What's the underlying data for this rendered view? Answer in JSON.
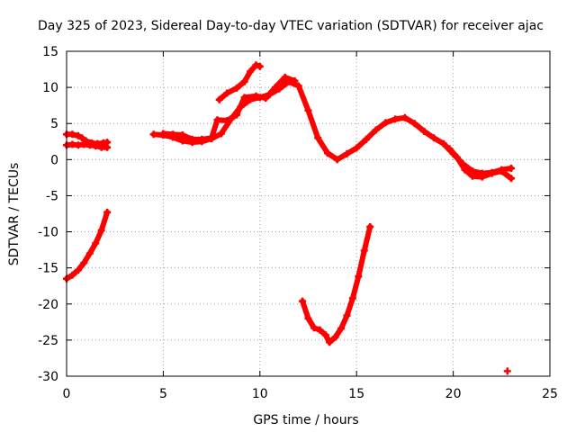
{
  "chart_data": {
    "type": "scatter",
    "title": "Day 325 of 2023, Sidereal Day-to-day VTEC variation (SDTVAR) for receiver ajac",
    "xlabel": "GPS time / hours",
    "ylabel": "SDTVAR / TECUs",
    "xlim": [
      0,
      25
    ],
    "ylim": [
      -30,
      15
    ],
    "x_ticks": [
      0,
      5,
      10,
      15,
      20,
      25
    ],
    "y_ticks": [
      15,
      10,
      5,
      0,
      -5,
      -10,
      -15,
      -20,
      -25,
      -30
    ],
    "grid": true,
    "marker_color": "#ff0000",
    "series": [
      {
        "name": "arc-a-upper",
        "points": [
          [
            0,
            3.5
          ],
          [
            0.3,
            3.5
          ],
          [
            0.6,
            3.3
          ],
          [
            0.8,
            3.0
          ],
          [
            1.0,
            2.6
          ],
          [
            1.3,
            2.3
          ],
          [
            1.6,
            2.2
          ],
          [
            1.9,
            2.3
          ],
          [
            2.1,
            2.4
          ]
        ]
      },
      {
        "name": "arc-a-lower",
        "points": [
          [
            0,
            2.0
          ],
          [
            0.3,
            2.1
          ],
          [
            0.6,
            2.0
          ],
          [
            0.9,
            2.1
          ],
          [
            1.2,
            2.0
          ],
          [
            1.5,
            1.9
          ],
          [
            1.8,
            1.7
          ],
          [
            2.1,
            1.7
          ]
        ]
      },
      {
        "name": "arc-b",
        "points": [
          [
            0,
            -16.5
          ],
          [
            0.3,
            -16.0
          ],
          [
            0.6,
            -15.3
          ],
          [
            0.9,
            -14.3
          ],
          [
            1.2,
            -13.0
          ],
          [
            1.5,
            -11.6
          ],
          [
            1.8,
            -9.8
          ],
          [
            2.1,
            -7.3
          ]
        ]
      },
      {
        "name": "arc-c",
        "points": [
          [
            4.5,
            3.5
          ],
          [
            5.0,
            3.4
          ],
          [
            5.5,
            3.1
          ],
          [
            6.0,
            2.6
          ],
          [
            6.5,
            2.4
          ],
          [
            7.0,
            2.5
          ],
          [
            7.5,
            2.9
          ],
          [
            8.0,
            3.6
          ],
          [
            8.5,
            5.6
          ],
          [
            9.0,
            7.3
          ],
          [
            9.5,
            8.3
          ],
          [
            10.0,
            8.6
          ],
          [
            10.5,
            9.0
          ],
          [
            11.0,
            9.8
          ],
          [
            11.5,
            10.8
          ],
          [
            12.0,
            10.2
          ],
          [
            12.5,
            6.8
          ],
          [
            13.0,
            3.0
          ],
          [
            13.5,
            0.9
          ],
          [
            14.0,
            0.0
          ],
          [
            14.5,
            0.8
          ],
          [
            15.0,
            1.6
          ],
          [
            15.5,
            2.8
          ],
          [
            16.0,
            4.1
          ],
          [
            16.5,
            5.1
          ],
          [
            17.0,
            5.6
          ],
          [
            17.5,
            5.8
          ],
          [
            18.0,
            5.0
          ],
          [
            18.5,
            3.9
          ],
          [
            19.0,
            3.0
          ],
          [
            19.5,
            2.2
          ],
          [
            20.0,
            0.8
          ],
          [
            20.5,
            -0.6
          ],
          [
            21.0,
            -1.6
          ],
          [
            21.5,
            -1.9
          ],
          [
            22.0,
            -1.8
          ],
          [
            22.5,
            -1.4
          ],
          [
            23.0,
            -1.2
          ]
        ]
      },
      {
        "name": "arc-c-upper",
        "points": [
          [
            5.0,
            3.6
          ],
          [
            5.5,
            3.5
          ],
          [
            6.0,
            3.4
          ],
          [
            6.5,
            2.8
          ],
          [
            7.0,
            2.8
          ],
          [
            7.5,
            3.0
          ],
          [
            7.8,
            5.5
          ],
          [
            8.3,
            5.4
          ],
          [
            8.8,
            6.2
          ],
          [
            9.2,
            8.6
          ],
          [
            9.8,
            8.8
          ],
          [
            10.3,
            8.5
          ],
          [
            10.8,
            10.0
          ],
          [
            11.3,
            11.4
          ],
          [
            11.8,
            10.9
          ]
        ]
      },
      {
        "name": "arc-c-lower",
        "points": [
          [
            19.8,
            1.5
          ],
          [
            20.2,
            0.3
          ],
          [
            20.6,
            -1.4
          ],
          [
            21.0,
            -2.3
          ],
          [
            21.5,
            -2.4
          ],
          [
            22.0,
            -1.9
          ],
          [
            22.5,
            -1.6
          ],
          [
            23.0,
            -2.6
          ]
        ]
      },
      {
        "name": "arc-d",
        "points": [
          [
            7.9,
            8.3
          ],
          [
            8.3,
            9.2
          ],
          [
            8.8,
            9.9
          ],
          [
            9.2,
            10.8
          ],
          [
            9.5,
            12.2
          ],
          [
            9.8,
            13.1
          ],
          [
            10.0,
            12.9
          ]
        ]
      },
      {
        "name": "arc-e",
        "points": [
          [
            12.2,
            -19.6
          ],
          [
            12.5,
            -22.0
          ],
          [
            12.8,
            -23.3
          ],
          [
            13.1,
            -23.6
          ],
          [
            13.4,
            -24.3
          ],
          [
            13.6,
            -25.3
          ],
          [
            13.9,
            -24.6
          ],
          [
            14.2,
            -23.4
          ],
          [
            14.5,
            -21.6
          ],
          [
            14.8,
            -19.2
          ],
          [
            15.1,
            -16.2
          ],
          [
            15.4,
            -12.6
          ],
          [
            15.7,
            -9.3
          ]
        ]
      },
      {
        "name": "point-f",
        "points": [
          [
            22.8,
            -29.3
          ]
        ]
      }
    ]
  }
}
